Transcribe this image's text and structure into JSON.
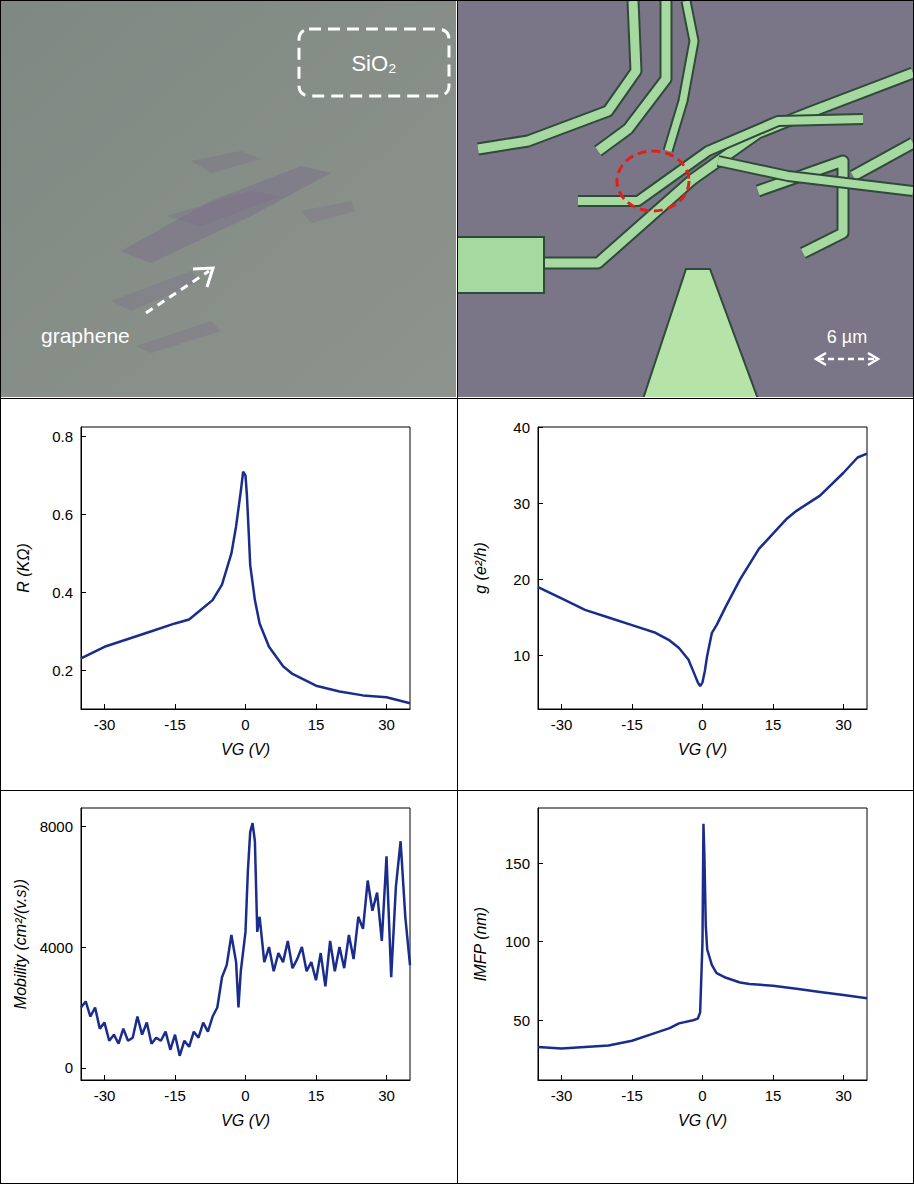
{
  "images": [
    {
      "box_label": "SiO₂",
      "arrow_label": "graphene"
    },
    {
      "scale_bar_label": "6 µm"
    }
  ],
  "chart_data": [
    {
      "type": "line",
      "x_label": "VG (V)",
      "y_label": "R (KΩ)",
      "color": "#1b2d8c",
      "grid": false,
      "xlim": [
        -35,
        35
      ],
      "xticks": [
        -30,
        -15,
        0,
        15,
        30
      ],
      "ylim": [
        0.1,
        0.825
      ],
      "yticks": [
        0.2,
        0.4,
        0.6,
        0.8
      ],
      "x": [
        -35,
        -30,
        -25,
        -20,
        -15,
        -12,
        -10,
        -7,
        -5,
        -3,
        -2,
        -1,
        -0.5,
        0,
        0.3,
        0.7,
        1,
        2,
        3,
        5,
        8,
        10,
        15,
        20,
        25,
        30,
        35
      ],
      "values": [
        0.23,
        0.26,
        0.28,
        0.3,
        0.32,
        0.33,
        0.35,
        0.38,
        0.42,
        0.5,
        0.57,
        0.66,
        0.71,
        0.7,
        0.65,
        0.55,
        0.47,
        0.38,
        0.32,
        0.26,
        0.21,
        0.19,
        0.16,
        0.145,
        0.135,
        0.13,
        0.115
      ]
    },
    {
      "type": "line",
      "x_label": "VG (V)",
      "y_label": "g (e²/h)",
      "color": "#1b2d8c",
      "grid": false,
      "xlim": [
        -35,
        35
      ],
      "xticks": [
        -30,
        -15,
        0,
        15,
        30
      ],
      "ylim": [
        3,
        40
      ],
      "yticks": [
        10,
        20,
        30,
        40
      ],
      "x": [
        -35,
        -30,
        -25,
        -20,
        -15,
        -10,
        -7,
        -5,
        -3,
        -2,
        -1,
        -0.5,
        0,
        0.5,
        1,
        2,
        3,
        5,
        8,
        10,
        12,
        15,
        18,
        20,
        25,
        30,
        33,
        35
      ],
      "values": [
        19,
        17.5,
        16,
        15,
        14,
        13,
        12,
        11,
        9.5,
        8,
        6.5,
        6,
        6.5,
        8,
        10,
        13,
        14,
        16.5,
        20,
        22,
        24,
        26,
        28,
        29,
        31,
        34,
        36,
        36.5
      ]
    },
    {
      "type": "line",
      "x_label": "VG (V)",
      "y_label": "Mobility (cm²/(v.s))",
      "color": "#1b2d8c",
      "grid": false,
      "xlim": [
        -35,
        35
      ],
      "xticks": [
        -30,
        -15,
        0,
        15,
        30
      ],
      "ylim": [
        -400,
        8600
      ],
      "yticks": [
        0,
        4000,
        8000
      ],
      "x": [
        -35,
        -34,
        -33,
        -32,
        -31,
        -30,
        -29,
        -28,
        -27,
        -26,
        -25,
        -24,
        -23,
        -22,
        -21,
        -20,
        -19,
        -18,
        -17,
        -16,
        -15,
        -14,
        -13,
        -12,
        -11,
        -10,
        -9,
        -8,
        -7,
        -6,
        -5,
        -4,
        -3,
        -2,
        -1.5,
        -1,
        0,
        0.5,
        1,
        1.5,
        2,
        2.5,
        3,
        4,
        5,
        6,
        7,
        8,
        9,
        10,
        11,
        12,
        13,
        14,
        15,
        16,
        17,
        18,
        19,
        20,
        21,
        22,
        23,
        24,
        25,
        26,
        27,
        28,
        29,
        30,
        31,
        32,
        33,
        34,
        35
      ],
      "values": [
        2000,
        2200,
        1700,
        2000,
        1300,
        1500,
        900,
        1100,
        800,
        1300,
        900,
        1000,
        1700,
        1100,
        1500,
        800,
        1000,
        900,
        1200,
        600,
        1100,
        400,
        900,
        700,
        1200,
        1000,
        1500,
        1200,
        1700,
        2000,
        3000,
        3400,
        4400,
        3500,
        2000,
        3200,
        4500,
        6500,
        7800,
        8100,
        7500,
        4500,
        5000,
        3500,
        4000,
        3200,
        3800,
        3500,
        4200,
        3300,
        3600,
        4000,
        3200,
        3500,
        2900,
        3800,
        2700,
        4200,
        3200,
        4000,
        3300,
        4400,
        3600,
        5000,
        4600,
        6200,
        5200,
        5800,
        4200,
        7000,
        3000,
        6000,
        7500,
        5000,
        3400
      ]
    },
    {
      "type": "line",
      "x_label": "VG (V)",
      "y_label": "lMFP (nm)",
      "color": "#1b2d8c",
      "grid": false,
      "xlim": [
        -35,
        35
      ],
      "xticks": [
        -30,
        -15,
        0,
        15,
        30
      ],
      "ylim": [
        12,
        185
      ],
      "yticks": [
        50,
        100,
        150
      ],
      "x": [
        -35,
        -30,
        -25,
        -20,
        -15,
        -10,
        -7,
        -5,
        -2,
        -1,
        -0.5,
        0,
        0.2,
        0.4,
        0.7,
        1,
        2,
        3,
        5,
        8,
        10,
        15,
        20,
        25,
        30,
        35
      ],
      "values": [
        33,
        32,
        33,
        34,
        37,
        42,
        45,
        48,
        50,
        51,
        55,
        100,
        175,
        155,
        110,
        95,
        85,
        80,
        77,
        74,
        73,
        72,
        70,
        68,
        66,
        64
      ]
    }
  ]
}
